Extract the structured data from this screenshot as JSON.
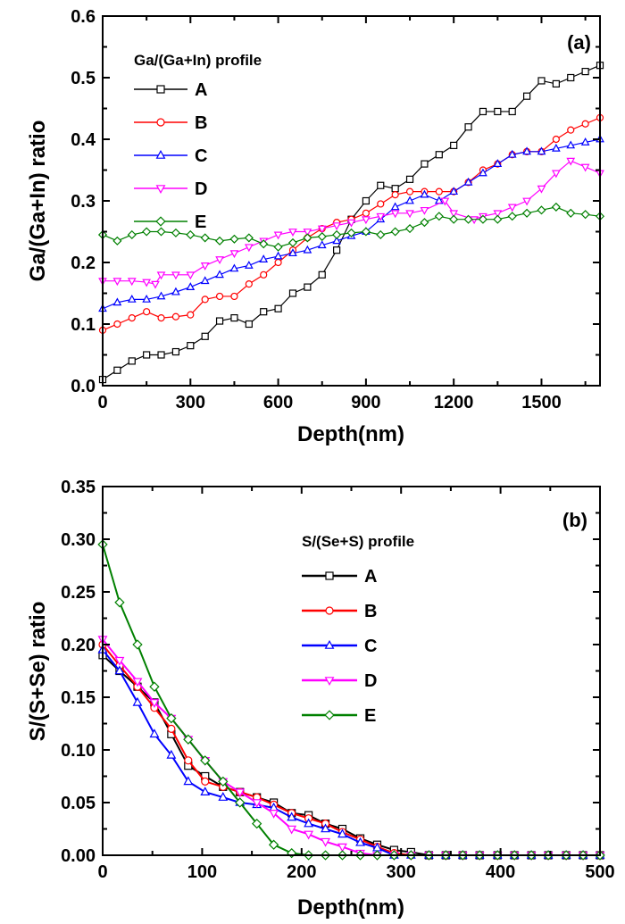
{
  "chart_data": [
    {
      "type": "line",
      "panel_label": "(a)",
      "xlabel": "Depth(nm)",
      "ylabel": "Ga/(Ga+In) ratio",
      "xlim": [
        0,
        1700
      ],
      "ylim": [
        0,
        0.6
      ],
      "xticks": [
        0,
        300,
        600,
        900,
        1200,
        1500
      ],
      "xtick_labels": [
        "0",
        "300",
        "600",
        "900",
        "1200",
        "1500"
      ],
      "yticks": [
        0,
        0.1,
        0.2,
        0.3,
        0.4,
        0.5,
        0.6
      ],
      "ytick_labels": [
        "0.0",
        "0.1",
        "0.2",
        "0.3",
        "0.4",
        "0.5",
        "0.6"
      ],
      "legend_title": "Ga/(Ga+In) profile",
      "legend_position": "top-left",
      "grid": false,
      "series": [
        {
          "name": "A",
          "color": "#000000",
          "marker": "square",
          "x": [
            0,
            50,
            100,
            150,
            200,
            250,
            300,
            350,
            400,
            450,
            500,
            550,
            600,
            650,
            700,
            750,
            800,
            850,
            900,
            950,
            1000,
            1050,
            1100,
            1150,
            1200,
            1250,
            1300,
            1350,
            1400,
            1450,
            1500,
            1550,
            1600,
            1650,
            1700
          ],
          "y": [
            0.01,
            0.025,
            0.04,
            0.05,
            0.05,
            0.055,
            0.065,
            0.08,
            0.105,
            0.11,
            0.1,
            0.12,
            0.125,
            0.15,
            0.16,
            0.18,
            0.22,
            0.27,
            0.3,
            0.325,
            0.32,
            0.335,
            0.36,
            0.375,
            0.39,
            0.42,
            0.445,
            0.445,
            0.445,
            0.47,
            0.495,
            0.49,
            0.5,
            0.51,
            0.52
          ]
        },
        {
          "name": "B",
          "color": "#ff0000",
          "marker": "circle",
          "x": [
            0,
            50,
            100,
            150,
            200,
            250,
            300,
            350,
            400,
            450,
            500,
            550,
            600,
            650,
            700,
            750,
            800,
            850,
            900,
            950,
            1000,
            1050,
            1100,
            1150,
            1200,
            1250,
            1300,
            1350,
            1400,
            1450,
            1500,
            1550,
            1600,
            1650,
            1700
          ],
          "y": [
            0.09,
            0.1,
            0.11,
            0.12,
            0.11,
            0.112,
            0.115,
            0.14,
            0.145,
            0.145,
            0.165,
            0.18,
            0.2,
            0.22,
            0.24,
            0.255,
            0.265,
            0.27,
            0.28,
            0.295,
            0.31,
            0.315,
            0.315,
            0.315,
            0.315,
            0.33,
            0.35,
            0.36,
            0.375,
            0.38,
            0.38,
            0.4,
            0.415,
            0.425,
            0.435
          ]
        },
        {
          "name": "C",
          "color": "#0000ff",
          "marker": "triangle-up",
          "x": [
            0,
            50,
            100,
            150,
            200,
            250,
            300,
            350,
            400,
            450,
            500,
            550,
            600,
            650,
            700,
            750,
            800,
            850,
            900,
            950,
            1000,
            1050,
            1100,
            1150,
            1200,
            1250,
            1300,
            1350,
            1400,
            1450,
            1500,
            1550,
            1600,
            1650,
            1700
          ],
          "y": [
            0.125,
            0.135,
            0.14,
            0.14,
            0.145,
            0.152,
            0.16,
            0.17,
            0.18,
            0.19,
            0.195,
            0.205,
            0.21,
            0.215,
            0.22,
            0.228,
            0.235,
            0.243,
            0.25,
            0.27,
            0.29,
            0.3,
            0.31,
            0.3,
            0.315,
            0.33,
            0.345,
            0.36,
            0.375,
            0.38,
            0.38,
            0.385,
            0.39,
            0.395,
            0.4
          ]
        },
        {
          "name": "D",
          "color": "#ff00ff",
          "marker": "triangle-down",
          "x": [
            0,
            50,
            100,
            150,
            180,
            200,
            250,
            300,
            350,
            400,
            450,
            500,
            550,
            600,
            650,
            700,
            750,
            800,
            850,
            900,
            950,
            1000,
            1050,
            1100,
            1170,
            1200,
            1270,
            1300,
            1350,
            1400,
            1450,
            1500,
            1550,
            1600,
            1650,
            1700
          ],
          "y": [
            0.17,
            0.17,
            0.17,
            0.168,
            0.165,
            0.18,
            0.18,
            0.18,
            0.195,
            0.205,
            0.215,
            0.225,
            0.235,
            0.245,
            0.25,
            0.25,
            0.255,
            0.26,
            0.265,
            0.27,
            0.275,
            0.28,
            0.28,
            0.285,
            0.3,
            0.28,
            0.27,
            0.275,
            0.28,
            0.29,
            0.3,
            0.32,
            0.345,
            0.365,
            0.355,
            0.345
          ]
        },
        {
          "name": "E",
          "color": "#008000",
          "marker": "diamond",
          "x": [
            0,
            50,
            100,
            150,
            200,
            250,
            300,
            350,
            400,
            450,
            500,
            550,
            600,
            650,
            700,
            750,
            800,
            850,
            900,
            950,
            1000,
            1050,
            1100,
            1150,
            1200,
            1250,
            1300,
            1350,
            1400,
            1450,
            1500,
            1550,
            1600,
            1650,
            1700
          ],
          "y": [
            0.245,
            0.235,
            0.245,
            0.25,
            0.25,
            0.248,
            0.245,
            0.24,
            0.235,
            0.238,
            0.24,
            0.23,
            0.225,
            0.232,
            0.24,
            0.242,
            0.245,
            0.248,
            0.25,
            0.245,
            0.25,
            0.255,
            0.265,
            0.275,
            0.27,
            0.27,
            0.27,
            0.27,
            0.275,
            0.28,
            0.285,
            0.29,
            0.28,
            0.278,
            0.275
          ]
        }
      ]
    },
    {
      "type": "line",
      "panel_label": "(b)",
      "xlabel": "Depth(nm)",
      "ylabel": "S/(S+Se) ratio",
      "xlim": [
        0,
        500
      ],
      "ylim": [
        0,
        0.35
      ],
      "xticks": [
        0,
        100,
        200,
        300,
        400,
        500
      ],
      "xtick_labels": [
        "0",
        "100",
        "200",
        "300",
        "400",
        "500"
      ],
      "yticks": [
        0,
        0.05,
        0.1,
        0.15,
        0.2,
        0.25,
        0.3,
        0.35
      ],
      "ytick_labels": [
        "0.00",
        "0.05",
        "0.10",
        "0.15",
        "0.20",
        "0.25",
        "0.30",
        "0.35"
      ],
      "legend_title": "S/(Se+S) profile",
      "legend_position": "top-center",
      "grid": false,
      "series": [
        {
          "name": "A",
          "color": "#000000",
          "marker": "square",
          "x": [
            0,
            17,
            35,
            52,
            69,
            86,
            103,
            121,
            138,
            155,
            172,
            190,
            207,
            224,
            241,
            259,
            276,
            293,
            310,
            328,
            345,
            362,
            379,
            397,
            414,
            431,
            448,
            466,
            483,
            500
          ],
          "y": [
            0.19,
            0.175,
            0.16,
            0.145,
            0.115,
            0.085,
            0.075,
            0.065,
            0.06,
            0.055,
            0.05,
            0.04,
            0.038,
            0.03,
            0.025,
            0.016,
            0.01,
            0.005,
            0.003,
            0,
            0,
            0,
            0,
            0,
            0,
            0,
            0,
            0,
            0,
            0
          ]
        },
        {
          "name": "B",
          "color": "#ff0000",
          "marker": "circle",
          "x": [
            0,
            17,
            35,
            52,
            69,
            86,
            103,
            121,
            138,
            155,
            172,
            190,
            207,
            224,
            241,
            259,
            276,
            293,
            310,
            328,
            345,
            362,
            379,
            397,
            414,
            431,
            448,
            466,
            483,
            500
          ],
          "y": [
            0.2,
            0.18,
            0.16,
            0.14,
            0.12,
            0.09,
            0.07,
            0.065,
            0.06,
            0.055,
            0.048,
            0.04,
            0.035,
            0.03,
            0.022,
            0.015,
            0.008,
            0.002,
            0,
            0,
            0,
            0,
            0,
            0,
            0,
            0,
            0,
            0,
            0,
            0
          ]
        },
        {
          "name": "C",
          "color": "#0000ff",
          "marker": "triangle-up",
          "x": [
            0,
            17,
            35,
            52,
            69,
            86,
            103,
            121,
            138,
            155,
            172,
            190,
            207,
            224,
            241,
            259,
            276,
            293,
            310,
            328,
            345,
            362,
            379,
            397,
            414,
            431,
            448,
            466,
            483,
            500
          ],
          "y": [
            0.195,
            0.175,
            0.145,
            0.115,
            0.095,
            0.07,
            0.06,
            0.055,
            0.05,
            0.048,
            0.045,
            0.036,
            0.03,
            0.025,
            0.02,
            0.012,
            0.007,
            0,
            0,
            0,
            0,
            0,
            0,
            0,
            0,
            0,
            0,
            0,
            0,
            0
          ]
        },
        {
          "name": "D",
          "color": "#ff00ff",
          "marker": "triangle-down",
          "x": [
            0,
            17,
            35,
            52,
            69,
            86,
            103,
            121,
            138,
            155,
            172,
            190,
            207,
            224,
            241,
            259,
            276,
            293,
            310,
            328,
            345,
            362,
            379,
            397,
            414,
            431,
            448,
            466,
            483,
            500
          ],
          "y": [
            0.205,
            0.185,
            0.165,
            0.145,
            0.13,
            0.11,
            0.09,
            0.07,
            0.06,
            0.05,
            0.04,
            0.025,
            0.02,
            0.013,
            0.008,
            0.002,
            0,
            0,
            0,
            0,
            0,
            0,
            0,
            0,
            0,
            0,
            0,
            0,
            0,
            0
          ]
        },
        {
          "name": "E",
          "color": "#008000",
          "marker": "diamond",
          "x": [
            0,
            17,
            35,
            52,
            69,
            86,
            103,
            121,
            138,
            155,
            172,
            190,
            207,
            224,
            241,
            259,
            276,
            293,
            310,
            328,
            345,
            362,
            379,
            397,
            414,
            431,
            448,
            466,
            483,
            500
          ],
          "y": [
            0.295,
            0.24,
            0.2,
            0.16,
            0.13,
            0.11,
            0.09,
            0.07,
            0.05,
            0.03,
            0.01,
            0.002,
            0,
            0,
            0,
            0,
            0,
            0,
            0,
            0,
            0,
            0,
            0,
            0,
            0,
            0,
            0,
            0,
            0,
            0
          ]
        }
      ]
    }
  ]
}
